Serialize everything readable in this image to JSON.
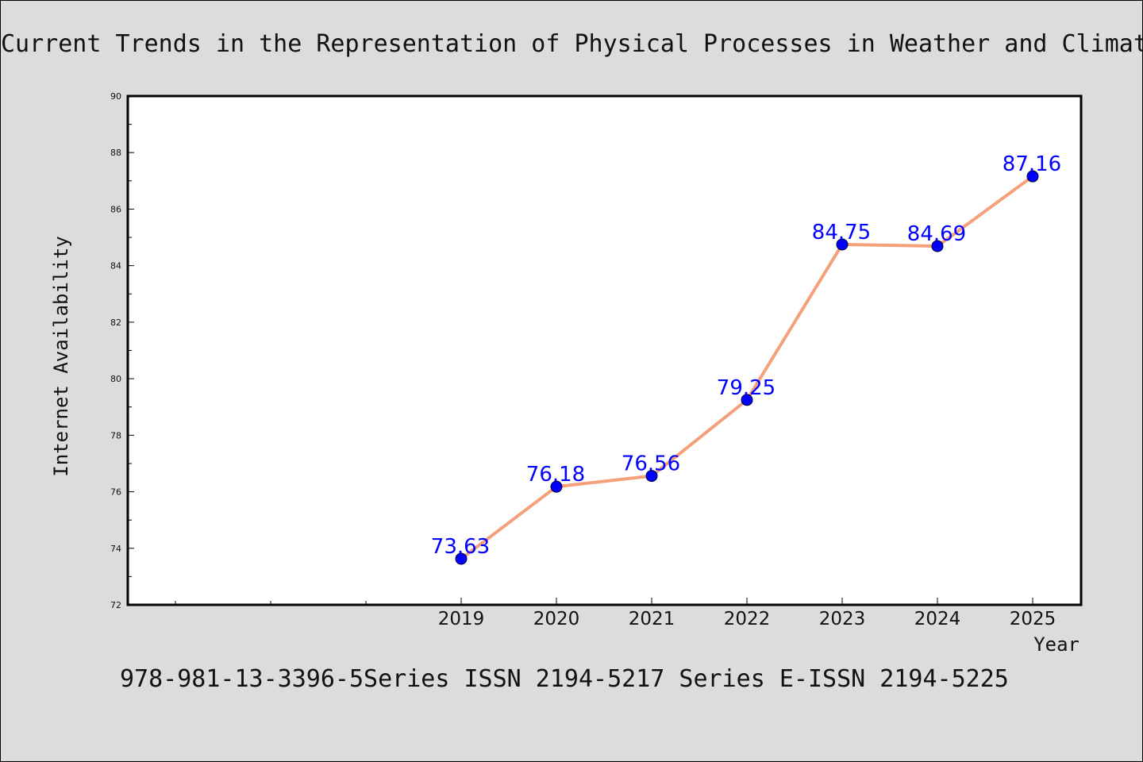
{
  "chart_data": {
    "type": "line",
    "title": "Current Trends in the Representation of Physical Processes in Weather and Climate Models",
    "xlabel": "Year",
    "ylabel": "Internet Availability",
    "ylim": [
      72,
      90
    ],
    "yticks": [
      72,
      74,
      76,
      78,
      80,
      82,
      84,
      86,
      88,
      90
    ],
    "x": [
      "2019",
      "2020",
      "2021",
      "2022",
      "2023",
      "2024",
      "2025"
    ],
    "series": [
      {
        "values": [
          73.63,
          76.18,
          76.56,
          79.25,
          84.75,
          84.69,
          87.16
        ],
        "data_labels": [
          "73.63",
          "76.18",
          "76.56",
          "79.25",
          "84.75",
          "84.69",
          "87.16"
        ]
      }
    ],
    "line_color": "#f4a07a",
    "marker_color": "#0000ff",
    "label_color": "#0000ff",
    "grid": false,
    "legend": "none"
  },
  "footer": {
    "text": "978-981-13-3396-5Series ISSN 2194-5217 Series E-ISSN 2194-5225"
  }
}
